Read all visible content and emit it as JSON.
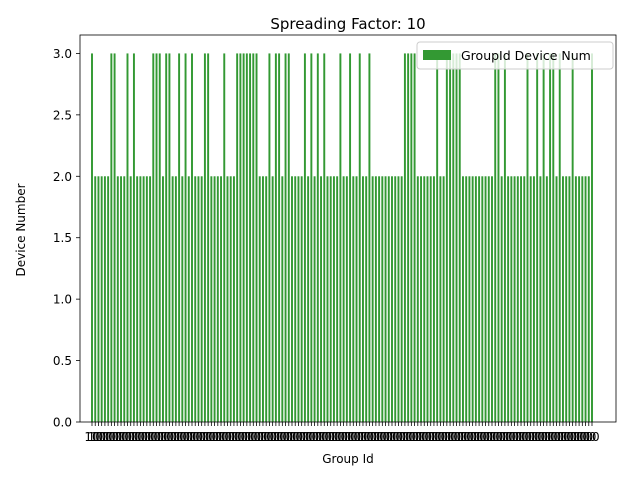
{
  "chart_data": {
    "type": "bar",
    "title": "Spreading Factor: 10",
    "xlabel": "Group Id",
    "ylabel": "Device Number",
    "ylim": [
      0,
      3.15
    ],
    "yticks": [
      "0.0",
      "0.5",
      "1.0",
      "1.5",
      "2.0",
      "2.5",
      "3.0"
    ],
    "ytick_values": [
      0,
      0.5,
      1.0,
      1.5,
      2.0,
      2.5,
      3.0
    ],
    "x_tick_label": "10",
    "grid": false,
    "legend_position": "top-right",
    "bar_color": "#339933",
    "series": [
      {
        "name": "GroupId Device Num",
        "values": [
          3,
          2,
          2,
          2,
          2,
          2,
          3,
          3,
          2,
          2,
          2,
          3,
          2,
          3,
          2,
          2,
          2,
          2,
          2,
          3,
          3,
          3,
          2,
          3,
          3,
          2,
          2,
          3,
          2,
          3,
          2,
          3,
          2,
          2,
          2,
          3,
          3,
          2,
          2,
          2,
          2,
          3,
          2,
          2,
          2,
          3,
          3,
          3,
          3,
          3,
          3,
          3,
          2,
          2,
          2,
          3,
          2,
          3,
          3,
          2,
          3,
          3,
          2,
          2,
          2,
          2,
          3,
          2,
          3,
          2,
          3,
          2,
          3,
          2,
          2,
          2,
          2,
          3,
          2,
          2,
          3,
          2,
          2,
          3,
          2,
          2,
          3,
          2,
          2,
          2,
          2,
          2,
          2,
          2,
          2,
          2,
          2,
          3,
          3,
          3,
          3,
          2,
          2,
          2,
          2,
          2,
          2,
          3,
          2,
          2,
          3,
          3,
          3,
          3,
          3,
          2,
          2,
          2,
          2,
          2,
          2,
          2,
          2,
          2,
          2,
          3,
          3,
          2,
          3,
          2,
          2,
          2,
          2,
          2,
          2,
          3,
          2,
          2,
          3,
          2,
          3,
          2,
          3,
          3,
          2,
          3,
          2,
          2,
          2,
          3,
          2,
          2,
          2,
          2,
          2,
          3
        ]
      }
    ]
  }
}
